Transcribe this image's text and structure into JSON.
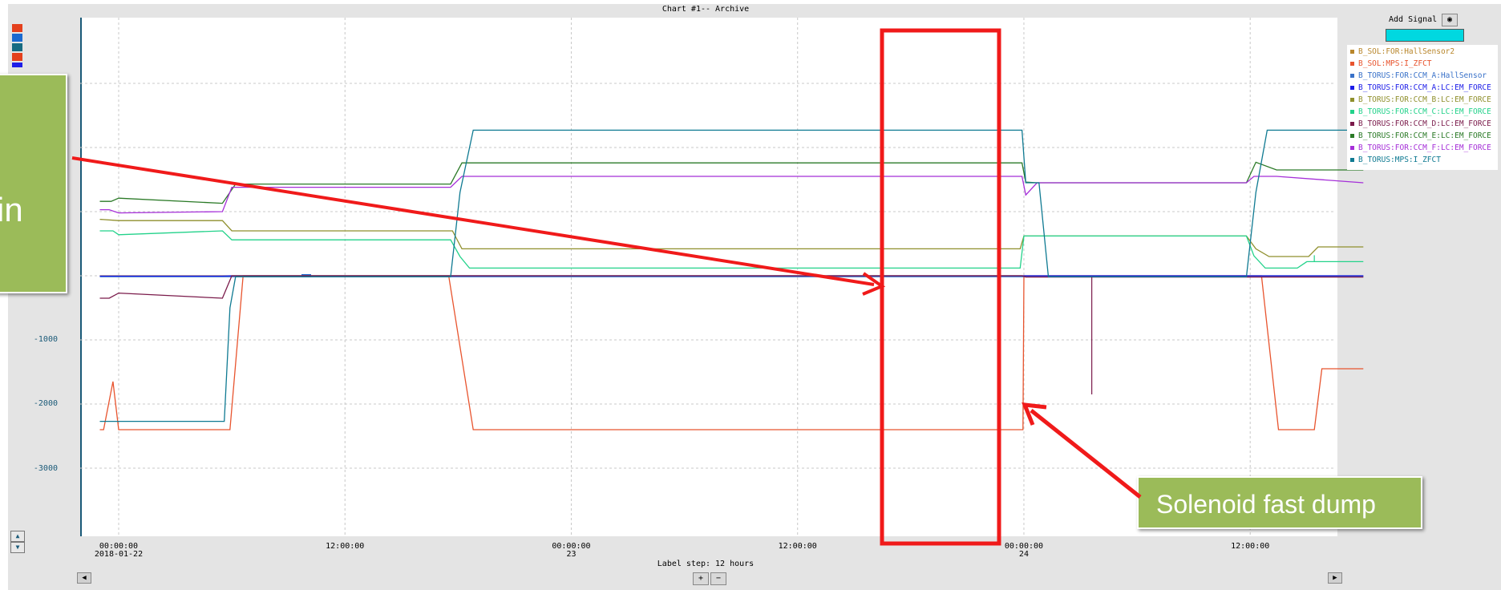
{
  "chart_data": {
    "type": "line",
    "title": "Chart #1-- Archive",
    "yticks": [
      "-1000",
      "-2000",
      "-3000"
    ],
    "ylim": [
      -4000,
      4000
    ],
    "x_unit": "hours from 2018-01-22 00:00:00",
    "xlim": [
      -1,
      66
    ],
    "xticks": [
      {
        "x": 0,
        "time": "00:00:00",
        "date": "2018-01-22"
      },
      {
        "x": 12,
        "time": "12:00:00",
        "date": ""
      },
      {
        "x": 24,
        "time": "00:00:00",
        "date": "23"
      },
      {
        "x": 36,
        "time": "12:00:00",
        "date": ""
      },
      {
        "x": 48,
        "time": "00:00:00",
        "date": "24"
      },
      {
        "x": 60,
        "time": "12:00:00",
        "date": ""
      }
    ],
    "x_label": "Label step: 12 hours",
    "grid": true,
    "series": [
      {
        "name": "B_SOL:FOR:HallSensor2",
        "color": "#b8862b",
        "x": [
          -1,
          66
        ],
        "y": [
          0,
          0
        ]
      },
      {
        "name": "B_SOL:MPS:I_ZFCT",
        "color": "#e8542e",
        "x": [
          -1,
          -0.8,
          -0.3,
          0,
          5.9,
          6.6,
          17.5,
          18.8,
          47.95,
          48,
          48.5,
          60.6,
          61.5,
          63.4,
          63.8,
          66
        ],
        "y": [
          -2400,
          -2400,
          -1650,
          -2400,
          -2400,
          0,
          0,
          -2400,
          -2400,
          0,
          0,
          0,
          -2400,
          -2400,
          -1450,
          -1450
        ]
      },
      {
        "name": "B_TORUS:FOR:CCM_A:HallSensor",
        "color": "#3a72c9",
        "x": [
          -1,
          66
        ],
        "y": [
          -15,
          -15
        ]
      },
      {
        "name": "B_TORUS:FOR:CCM_A:LC:EM_FORCE",
        "color": "#1c1ce8",
        "x": [
          -1,
          5.5,
          6.0,
          66
        ],
        "y": [
          -5,
          -5,
          0,
          0
        ]
      },
      {
        "name": "B_TORUS:FOR:CCM_B:LC:EM_FORCE",
        "color": "#8f8f2c",
        "x": [
          -1,
          0,
          5.5,
          6,
          17.7,
          18.2,
          47.8,
          48,
          59.8,
          60.3,
          61.0,
          63.1,
          63.6,
          66
        ],
        "y": [
          880,
          860,
          860,
          700,
          700,
          420,
          420,
          620,
          620,
          420,
          300,
          300,
          450,
          450
        ]
      },
      {
        "name": "B_TORUS:FOR:CCM_C:LC:EM_FORCE",
        "color": "#22d28a",
        "x": [
          -1,
          -0.3,
          0,
          5.5,
          6,
          17.6,
          18.1,
          18.6,
          47.8,
          48,
          59.8,
          60.2,
          60.8,
          62.5,
          63.0,
          66
        ],
        "y": [
          700,
          700,
          640,
          700,
          560,
          560,
          300,
          120,
          120,
          620,
          620,
          310,
          120,
          120,
          220,
          220
        ]
      },
      {
        "name": "B_TORUS:FOR:CCM_D:LC:EM_FORCE",
        "color": "#7a1a4a",
        "x": [
          -1,
          -0.5,
          0,
          5.5,
          6,
          47.9,
          48.1,
          66
        ],
        "y": [
          -350,
          -350,
          -270,
          -350,
          0,
          0,
          -20,
          -20
        ]
      },
      {
        "name": "B_TORUS:FOR:CCM_E:LC:EM_FORCE",
        "color": "#2b7a27",
        "x": [
          -1,
          -0.4,
          0,
          5.5,
          6.2,
          17.6,
          18.2,
          47.9,
          48.1,
          48.7,
          59.8,
          60.3,
          61.4,
          66
        ],
        "y": [
          1160,
          1160,
          1210,
          1130,
          1430,
          1430,
          1760,
          1760,
          1460,
          1450,
          1450,
          1770,
          1650,
          1650
        ]
      },
      {
        "name": "B_TORUS:FOR:CCM_F:LC:EM_FORCE",
        "color": "#a52fd8",
        "x": [
          -1,
          -0.5,
          0,
          5.5,
          6,
          17.6,
          18.2,
          47.9,
          48.1,
          48.7,
          59.8,
          60.2,
          61.4,
          66
        ],
        "y": [
          1030,
          1030,
          980,
          1000,
          1380,
          1380,
          1550,
          1550,
          1260,
          1450,
          1450,
          1550,
          1550,
          1450
        ]
      },
      {
        "name": "B_TORUS:MPS:I_ZFCT",
        "color": "#0f7a92",
        "x": [
          -1,
          5.6,
          5.9,
          6.2,
          17.6,
          18.1,
          18.8,
          47.9,
          48.1,
          48.8,
          49.3,
          59.8,
          60.3,
          60.9,
          66
        ],
        "y": [
          -2270,
          -2270,
          -500,
          -15,
          -15,
          1300,
          2270,
          2270,
          1450,
          1450,
          -15,
          -15,
          1300,
          2270,
          2270
        ]
      }
    ],
    "annotations": [
      {
        "text": "Solenoid fast dump"
      },
      {
        "text": "in"
      }
    ]
  },
  "ui": {
    "add_signal": "Add Signal",
    "zoom_in": "+",
    "zoom_out": "−",
    "nav_left": "◀",
    "nav_right": "▶",
    "spin_up": "▲",
    "spin_down": "▼",
    "binoculars_icon": "binoculars-icon",
    "swatch_colors": [
      "#e4401c",
      "#1a6ad0",
      "#176b82",
      "#e4401c",
      "#1e1ee8"
    ]
  }
}
